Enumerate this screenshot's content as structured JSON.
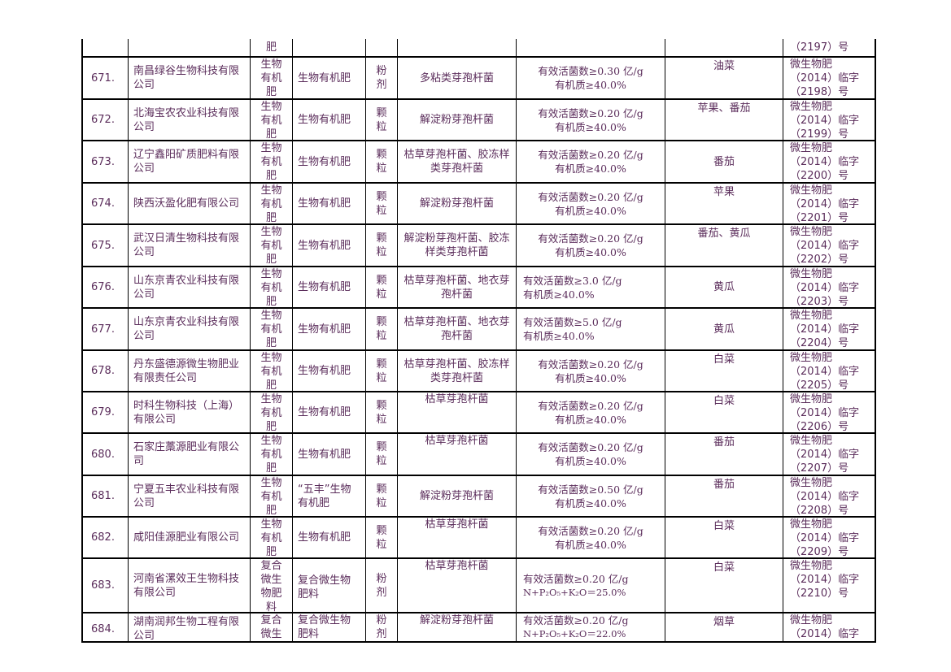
{
  "partial_row": {
    "type_tail": "肥",
    "cert_tail": "（2197）号"
  },
  "rows": [
    {
      "no": "671.",
      "company": "南昌绿谷生物科技有限公司",
      "type": "生物有机肥",
      "name": "生物有机肥",
      "form": "粉剂",
      "strain": "多粘类芽孢杆菌",
      "spec": [
        "有效活菌数≥0.30 亿/g",
        "有机质≥40.0%"
      ],
      "crop": "油菜",
      "cert": [
        "微生物肥",
        "（2014）临字",
        "（2198）号"
      ]
    },
    {
      "no": "672.",
      "company": "北海宝农农业科技有限公司",
      "type": "生物有机肥",
      "name": "生物有机肥",
      "form": "颗粒",
      "strain": "解淀粉芽孢杆菌",
      "spec": [
        "有效活菌数≥0.20 亿/g",
        "有机质≥40.0%"
      ],
      "crop": "苹果、番茄",
      "cert": [
        "微生物肥",
        "（2014）临字",
        "（2199）号"
      ]
    },
    {
      "no": "673.",
      "company": "辽宁鑫阳矿质肥料有限公司",
      "type": "生物有机肥",
      "name": "生物有机肥",
      "form": "颗粒",
      "strain": "枯草芽孢杆菌、胶冻样类芽孢杆菌",
      "spec": [
        "有效活菌数≥0.20 亿/g",
        "有机质≥40.0%"
      ],
      "crop": "番茄",
      "cert": [
        "微生物肥",
        "（2014）临字",
        "（2200）号"
      ]
    },
    {
      "no": "674.",
      "company": "陕西沃盈化肥有限公司",
      "type": "生物有机肥",
      "name": "生物有机肥",
      "form": "颗粒",
      "strain": "解淀粉芽孢杆菌",
      "spec": [
        "有效活菌数≥0.20 亿/g",
        "有机质≥40.0%"
      ],
      "crop": "苹果",
      "cert": [
        "微生物肥",
        "（2014）临字",
        "（2201）号"
      ]
    },
    {
      "no": "675.",
      "company": "武汉日清生物科技有限公司",
      "type": "生物有机肥",
      "name": "生物有机肥",
      "form": "颗粒",
      "strain": "解淀粉芽孢杆菌、胶冻样类芽孢杆菌",
      "spec": [
        "有效活菌数≥0.20 亿/g",
        "有机质≥40.0%"
      ],
      "crop": "番茄、黄瓜",
      "cert": [
        "微生物肥",
        "（2014）临字",
        "（2202）号"
      ]
    },
    {
      "no": "676.",
      "company": "山东京青农业科技有限公司",
      "type": "生物有机肥",
      "name": "生物有机肥",
      "form": "颗粒",
      "strain": "枯草芽孢杆菌、地衣芽孢杆菌",
      "spec": [
        "有效活菌数≥3.0 亿/g",
        "有机质≥40.0%"
      ],
      "crop": "黄瓜",
      "cert": [
        "微生物肥",
        "（2014）临字",
        "（2203）号"
      ]
    },
    {
      "no": "677.",
      "company": "山东京青农业科技有限公司",
      "type": "生物有机肥",
      "name": "生物有机肥",
      "form": "颗粒",
      "strain": "枯草芽孢杆菌、地衣芽孢杆菌",
      "spec": [
        "有效活菌数≥5.0 亿/g",
        "有机质≥40.0%"
      ],
      "crop": "黄瓜",
      "cert": [
        "微生物肥",
        "（2014）临字",
        "（2204）号"
      ]
    },
    {
      "no": "678.",
      "company": "丹东盛德源微生物肥业有限责任公司",
      "type": "生物有机肥",
      "name": "生物有机肥",
      "form": "颗粒",
      "strain": "枯草芽孢杆菌、胶冻样类芽孢杆菌",
      "spec": [
        "有效活菌数≥0.20 亿/g",
        "有机质≥40.0%"
      ],
      "crop": "白菜",
      "cert": [
        "微生物肥",
        "（2014）临字",
        "（2205）号"
      ]
    },
    {
      "no": "679.",
      "company": "时科生物科技（上海）有限公司",
      "type": "生物有机肥",
      "name": "生物有机肥",
      "form": "颗粒",
      "strain": "枯草芽孢杆菌",
      "spec": [
        "有效活菌数≥0.20 亿/g",
        "有机质≥40.0%"
      ],
      "crop": "白菜",
      "cert": [
        "微生物肥",
        "（2014）临字",
        "（2206）号"
      ]
    },
    {
      "no": "680.",
      "company": "石家庄藁源肥业有限公司",
      "type": "生物有机肥",
      "name": "生物有机肥",
      "form": "颗粒",
      "strain": "枯草芽孢杆菌",
      "spec": [
        "有效活菌数≥0.20 亿/g",
        "有机质≥40.0%"
      ],
      "crop": "番茄",
      "cert": [
        "微生物肥",
        "（2014）临字",
        "（2207）号"
      ]
    },
    {
      "no": "681.",
      "company": "宁夏五丰农业科技有限公司",
      "type": "生物有机肥",
      "name": "“五丰”生物有机肥",
      "form": "颗粒",
      "strain": "解淀粉芽孢杆菌",
      "spec": [
        "有效活菌数≥0.50 亿/g",
        "有机质≥40.0%"
      ],
      "crop": "番茄",
      "cert": [
        "微生物肥",
        "（2014）临字",
        "（2208）号"
      ]
    },
    {
      "no": "682.",
      "company": "咸阳佳源肥业有限公司",
      "type": "生物有机肥",
      "name": "生物有机肥",
      "form": "颗粒",
      "strain": "枯草芽孢杆菌",
      "spec": [
        "有效活菌数≥0.20 亿/g",
        "有机质≥40.0%"
      ],
      "crop": "白菜",
      "cert": [
        "微生物肥",
        "（2014）临字",
        "（2209）号"
      ]
    },
    {
      "no": "683.",
      "company": "河南省漯效王生物科技有限公司",
      "type": "复合微生物肥料",
      "name": "复合微生物肥料",
      "form": "粉剂",
      "strain": "枯草芽孢杆菌",
      "spec": [
        "有效活菌数≥0.20 亿/g",
        "N+P₂O₅+K₂O＝25.0%"
      ],
      "crop": "白菜",
      "cert": [
        "微生物肥",
        "（2014）临字",
        "（2210）号"
      ]
    },
    {
      "no": "684.",
      "company": "湖南润邦生物工程有限公司",
      "type": "复合微生物肥料",
      "name": "复合微生物肥料",
      "form": "粉剂",
      "strain": "解淀粉芽孢杆菌",
      "spec": [
        "有效活菌数≥0.20 亿/g",
        "N+P₂O₅+K₂O＝22.0%"
      ],
      "crop": "烟草",
      "cert": [
        "微生物肥",
        "（2014）临字"
      ]
    }
  ]
}
